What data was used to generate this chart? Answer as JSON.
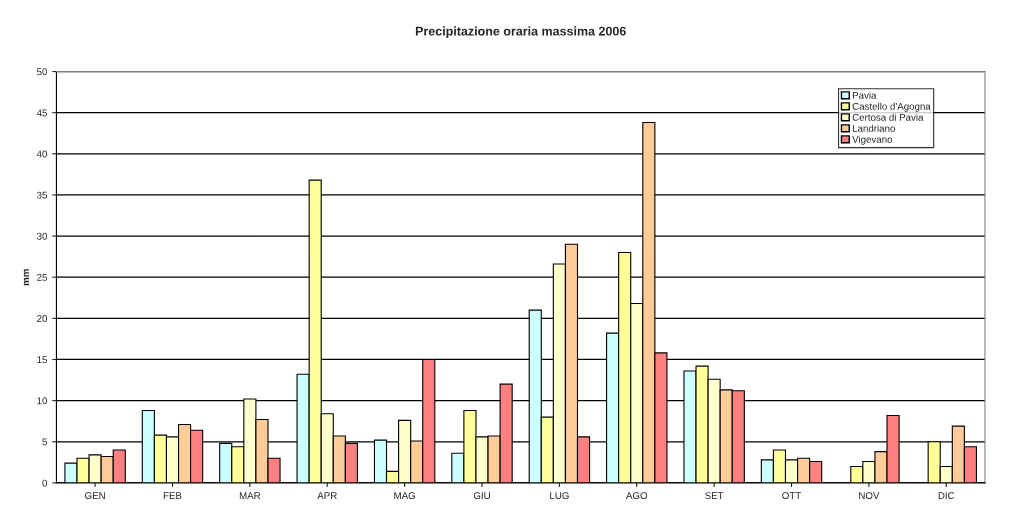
{
  "chart_data": {
    "type": "bar",
    "title": "Precipitazione oraria massima 2006",
    "ylabel": "mm",
    "categories": [
      "GEN",
      "FEB",
      "MAR",
      "APR",
      "MAG",
      "GIU",
      "LUG",
      "AGO",
      "SET",
      "OTT",
      "NOV",
      "DIC"
    ],
    "series": [
      {
        "name": "Pavia",
        "color": "#ccffff",
        "values": [
          2.4,
          8.8,
          4.8,
          13.2,
          5.2,
          3.6,
          21.0,
          18.2,
          13.6,
          2.8,
          null,
          null
        ]
      },
      {
        "name": "Castello d'Agogna",
        "color": "#ffff99",
        "values": [
          3.0,
          5.8,
          4.4,
          36.8,
          1.4,
          8.8,
          8.0,
          28.0,
          14.2,
          4.0,
          2.0,
          5.0
        ]
      },
      {
        "name": "Certosa di Pavia",
        "color": "#ffffcc",
        "values": [
          3.4,
          5.6,
          10.2,
          8.4,
          7.6,
          5.6,
          26.6,
          21.8,
          12.6,
          2.8,
          2.6,
          2.0
        ]
      },
      {
        "name": "Landriano",
        "color": "#ffcc99",
        "values": [
          3.2,
          7.1,
          7.7,
          5.7,
          5.1,
          5.7,
          29.0,
          43.8,
          11.3,
          3.0,
          3.8,
          6.9
        ]
      },
      {
        "name": "Vigevano",
        "color": "#ff8080",
        "values": [
          4.0,
          6.4,
          3.0,
          4.8,
          15.0,
          12.0,
          5.6,
          15.8,
          11.2,
          2.6,
          8.2,
          4.4
        ]
      }
    ],
    "ylim": [
      0,
      50
    ],
    "yticks": [
      0,
      5,
      10,
      15,
      20,
      25,
      30,
      35,
      40,
      45,
      50
    ],
    "grid": "y",
    "legend": "top right"
  }
}
